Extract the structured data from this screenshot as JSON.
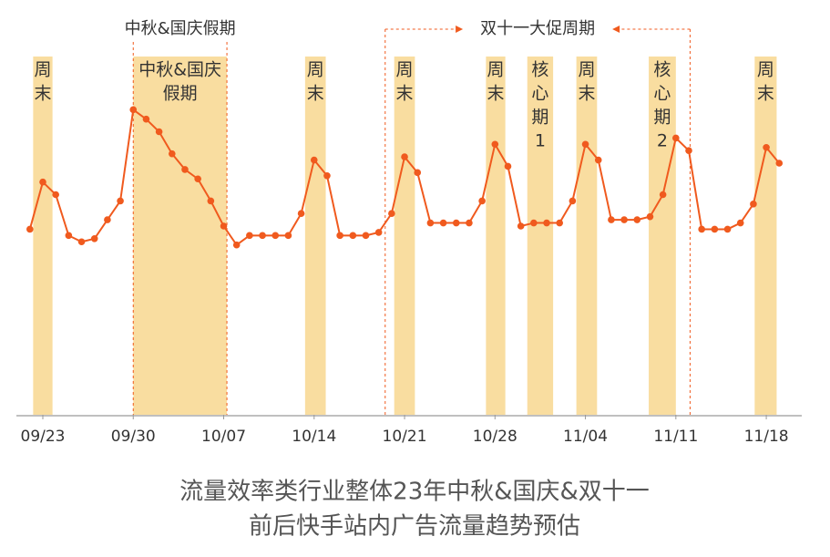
{
  "chart_data": {
    "type": "line",
    "title_lines": [
      "流量效率类行业整体23年中秋&国庆&双十一",
      "前后快手站内广告流量趋势预估"
    ],
    "categories": [
      null,
      "09/23",
      null,
      null,
      null,
      null,
      null,
      null,
      "09/30",
      null,
      null,
      null,
      null,
      null,
      null,
      "10/07",
      null,
      null,
      null,
      null,
      null,
      null,
      "10/14",
      null,
      null,
      null,
      null,
      null,
      null,
      "10/21",
      null,
      null,
      null,
      null,
      null,
      null,
      "10/28",
      null,
      null,
      null,
      null,
      null,
      null,
      "11/04",
      null,
      null,
      null,
      null,
      null,
      null,
      "11/11",
      null,
      null,
      null,
      null,
      null,
      null,
      "11/18",
      null
    ],
    "values": [
      59,
      74,
      70,
      57,
      55,
      56,
      62,
      68,
      97,
      94,
      90,
      83,
      78,
      75,
      68,
      60,
      54,
      57,
      57,
      57,
      57,
      64,
      81,
      76,
      57,
      57,
      57,
      58,
      64,
      82,
      77,
      61,
      61,
      61,
      61,
      68,
      86,
      79,
      60,
      61,
      61,
      61,
      68,
      86,
      81,
      62,
      62,
      62,
      63,
      70,
      88,
      84,
      59,
      59,
      59,
      61,
      67,
      85,
      80
    ],
    "color": "#f05a1e",
    "ylim": [
      0,
      100
    ],
    "band_color": "#f9dda0",
    "bands": [
      {
        "label_lines": [
          "周",
          "末"
        ],
        "x": [
          0.25,
          1.75
        ]
      },
      {
        "label_lines": [
          "中秋&国庆",
          "假期"
        ],
        "x": [
          8.0,
          15.25
        ]
      },
      {
        "label_lines": [
          "周",
          "末"
        ],
        "x": [
          21.3,
          22.9
        ]
      },
      {
        "label_lines": [
          "周",
          "末"
        ],
        "x": [
          28.2,
          29.8
        ]
      },
      {
        "label_lines": [
          "周",
          "末"
        ],
        "x": [
          35.3,
          36.8
        ]
      },
      {
        "label_lines": [
          "核",
          "心",
          "期",
          "1"
        ],
        "x": [
          38.5,
          40.5
        ]
      },
      {
        "label_lines": [
          "周",
          "末"
        ],
        "x": [
          42.3,
          43.9
        ]
      },
      {
        "label_lines": [
          "核",
          "心",
          "期",
          "2"
        ],
        "x": [
          47.9,
          50.0
        ]
      },
      {
        "label_lines": [
          "周",
          "末"
        ],
        "x": [
          56.1,
          57.8
        ]
      }
    ],
    "periods": [
      {
        "label": "中秋&国庆假期",
        "x": [
          8.0,
          15.25
        ],
        "arrows": false
      },
      {
        "label": "双十一大促周期",
        "x": [
          27.5,
          51.1
        ],
        "arrows": true
      }
    ]
  }
}
